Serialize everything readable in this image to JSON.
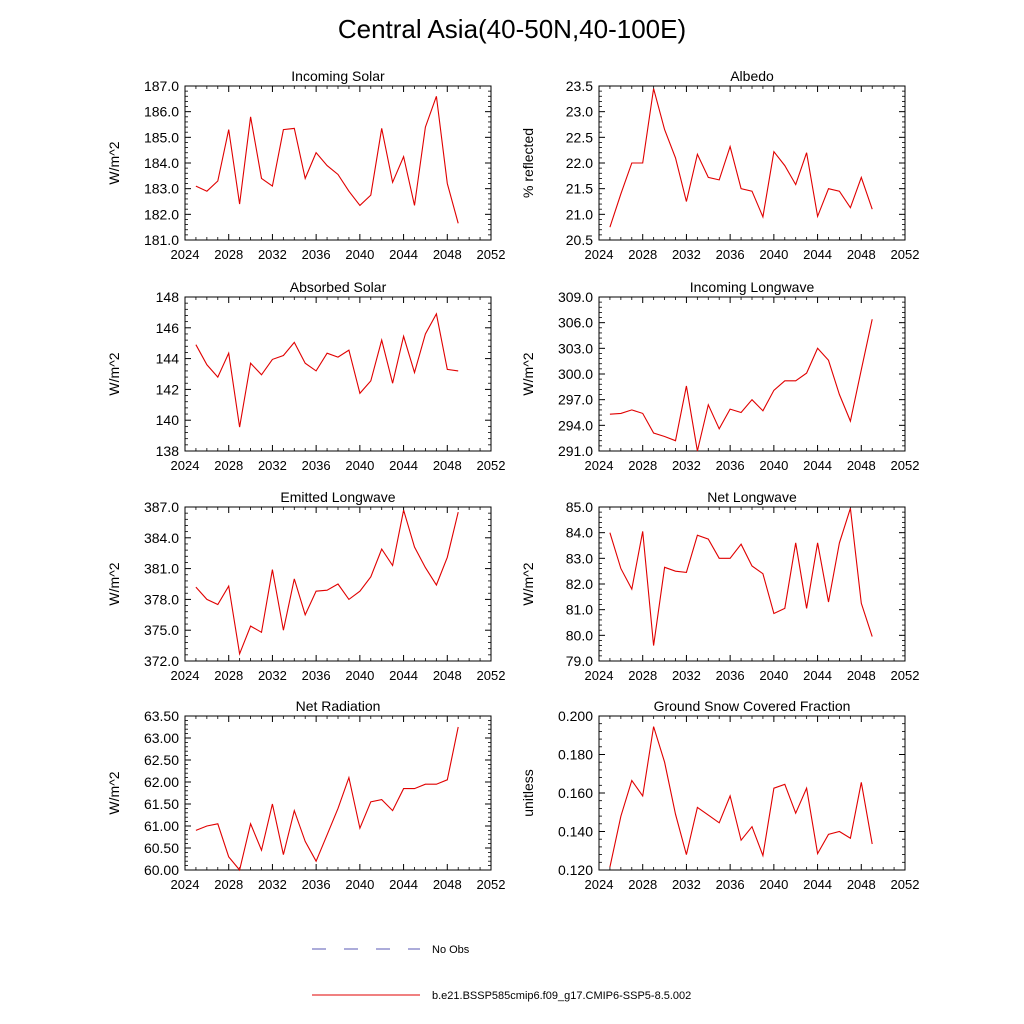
{
  "title": "Central Asia(40-50N,40-100E)",
  "legend": [
    {
      "label": "No Obs",
      "color": "#5a5ab4",
      "dashed": true
    },
    {
      "label": "b.e21.BSSP585cmip6.f09_g17.CMIP6-SSP5-8.5.002",
      "color": "#e00000",
      "dashed": false
    }
  ],
  "chart_data": [
    {
      "type": "line",
      "title": "Incoming Solar",
      "ylabel": "W/m^2",
      "xlim": [
        2024,
        2052
      ],
      "xticks": [
        2024,
        2028,
        2032,
        2036,
        2040,
        2044,
        2048,
        2052
      ],
      "ylim": [
        181.0,
        187.0
      ],
      "yticks": [
        "181.0",
        "182.0",
        "183.0",
        "184.0",
        "185.0",
        "186.0",
        "187.0"
      ],
      "series": [
        {
          "color": "#e00000",
          "x": [
            2025,
            2026,
            2027,
            2028,
            2029,
            2030,
            2031,
            2032,
            2033,
            2034,
            2035,
            2036,
            2037,
            2038,
            2039,
            2040,
            2041,
            2042,
            2043,
            2044,
            2045,
            2046,
            2047,
            2048,
            2049
          ],
          "values": [
            183.1,
            182.9,
            183.3,
            185.3,
            182.4,
            185.8,
            183.4,
            183.1,
            185.3,
            185.35,
            183.4,
            184.4,
            183.9,
            183.55,
            182.9,
            182.35,
            182.75,
            185.35,
            183.25,
            184.25,
            182.35,
            185.4,
            186.6,
            183.2,
            181.65
          ]
        }
      ]
    },
    {
      "type": "line",
      "title": "Albedo",
      "ylabel": "% reflected",
      "xlim": [
        2024,
        2052
      ],
      "xticks": [
        2024,
        2028,
        2032,
        2036,
        2040,
        2044,
        2048,
        2052
      ],
      "ylim": [
        20.5,
        23.5
      ],
      "yticks": [
        "20.5",
        "21.0",
        "21.5",
        "22.0",
        "22.5",
        "23.0",
        "23.5"
      ],
      "series": [
        {
          "color": "#e00000",
          "x": [
            2025,
            2026,
            2027,
            2028,
            2029,
            2030,
            2031,
            2032,
            2033,
            2034,
            2035,
            2036,
            2037,
            2038,
            2039,
            2040,
            2041,
            2042,
            2043,
            2044,
            2045,
            2046,
            2047,
            2048,
            2049
          ],
          "values": [
            20.75,
            21.4,
            22.0,
            22.0,
            23.45,
            22.65,
            22.1,
            21.25,
            22.17,
            21.72,
            21.67,
            22.32,
            21.5,
            21.45,
            20.95,
            22.22,
            21.95,
            21.58,
            22.2,
            20.96,
            21.5,
            21.45,
            21.13,
            21.72,
            21.1
          ]
        }
      ]
    },
    {
      "type": "line",
      "title": "Absorbed Solar",
      "ylabel": "W/m^2",
      "xlim": [
        2024,
        2052
      ],
      "xticks": [
        2024,
        2028,
        2032,
        2036,
        2040,
        2044,
        2048,
        2052
      ],
      "ylim": [
        138,
        148
      ],
      "yticks": [
        "138",
        "140",
        "142",
        "144",
        "146",
        "148"
      ],
      "series": [
        {
          "color": "#e00000",
          "x": [
            2025,
            2026,
            2027,
            2028,
            2029,
            2030,
            2031,
            2032,
            2033,
            2034,
            2035,
            2036,
            2037,
            2038,
            2039,
            2040,
            2041,
            2042,
            2043,
            2044,
            2045,
            2046,
            2047,
            2048,
            2049
          ],
          "values": [
            144.9,
            143.6,
            142.8,
            144.35,
            139.55,
            143.7,
            142.95,
            143.95,
            144.2,
            145.05,
            143.7,
            143.2,
            144.35,
            144.1,
            144.55,
            141.75,
            142.55,
            145.2,
            142.4,
            145.45,
            143.1,
            145.6,
            146.9,
            143.3,
            143.2
          ]
        }
      ]
    },
    {
      "type": "line",
      "title": "Incoming Longwave",
      "ylabel": "W/m^2",
      "xlim": [
        2024,
        2052
      ],
      "xticks": [
        2024,
        2028,
        2032,
        2036,
        2040,
        2044,
        2048,
        2052
      ],
      "ylim": [
        291.0,
        309.0
      ],
      "yticks": [
        "291.0",
        "294.0",
        "297.0",
        "300.0",
        "303.0",
        "306.0",
        "309.0"
      ],
      "series": [
        {
          "color": "#e00000",
          "x": [
            2025,
            2026,
            2027,
            2028,
            2029,
            2030,
            2031,
            2032,
            2033,
            2034,
            2035,
            2036,
            2037,
            2038,
            2039,
            2040,
            2041,
            2042,
            2043,
            2044,
            2045,
            2046,
            2047,
            2048,
            2049
          ],
          "values": [
            295.3,
            295.4,
            295.8,
            295.4,
            293.1,
            292.7,
            292.2,
            298.6,
            291.0,
            296.4,
            293.6,
            295.9,
            295.5,
            297.0,
            295.7,
            298.1,
            299.2,
            299.2,
            300.1,
            303.0,
            301.6,
            297.6,
            294.5,
            300.5,
            306.4
          ]
        }
      ]
    },
    {
      "type": "line",
      "title": "Emitted Longwave",
      "ylabel": "W/m^2",
      "xlim": [
        2024,
        2052
      ],
      "xticks": [
        2024,
        2028,
        2032,
        2036,
        2040,
        2044,
        2048,
        2052
      ],
      "ylim": [
        372.0,
        387.0
      ],
      "yticks": [
        "372.0",
        "375.0",
        "378.0",
        "381.0",
        "384.0",
        "387.0"
      ],
      "series": [
        {
          "color": "#e00000",
          "x": [
            2025,
            2026,
            2027,
            2028,
            2029,
            2030,
            2031,
            2032,
            2033,
            2034,
            2035,
            2036,
            2037,
            2038,
            2039,
            2040,
            2041,
            2042,
            2043,
            2044,
            2045,
            2046,
            2047,
            2048,
            2049
          ],
          "values": [
            379.2,
            378.0,
            377.5,
            379.3,
            372.7,
            375.4,
            374.8,
            380.9,
            375.0,
            380.0,
            376.5,
            378.8,
            378.9,
            379.5,
            378.0,
            378.8,
            380.2,
            382.9,
            381.3,
            386.7,
            383.1,
            381.1,
            379.4,
            382.1,
            386.5
          ]
        }
      ]
    },
    {
      "type": "line",
      "title": "Net Longwave",
      "ylabel": "W/m^2",
      "xlim": [
        2024,
        2052
      ],
      "xticks": [
        2024,
        2028,
        2032,
        2036,
        2040,
        2044,
        2048,
        2052
      ],
      "ylim": [
        79.0,
        85.0
      ],
      "yticks": [
        "79.0",
        "80.0",
        "81.0",
        "82.0",
        "83.0",
        "84.0",
        "85.0"
      ],
      "series": [
        {
          "color": "#e00000",
          "x": [
            2025,
            2026,
            2027,
            2028,
            2029,
            2030,
            2031,
            2032,
            2033,
            2034,
            2035,
            2036,
            2037,
            2038,
            2039,
            2040,
            2041,
            2042,
            2043,
            2044,
            2045,
            2046,
            2047,
            2048,
            2049
          ],
          "values": [
            84.0,
            82.6,
            81.8,
            84.05,
            79.6,
            82.65,
            82.5,
            82.45,
            83.9,
            83.75,
            83.0,
            83.0,
            83.55,
            82.7,
            82.4,
            80.85,
            81.05,
            83.6,
            81.05,
            83.6,
            81.3,
            83.6,
            84.95,
            81.25,
            79.95
          ]
        }
      ]
    },
    {
      "type": "line",
      "title": "Net Radiation",
      "ylabel": "W/m^2",
      "xlim": [
        2024,
        2052
      ],
      "xticks": [
        2024,
        2028,
        2032,
        2036,
        2040,
        2044,
        2048,
        2052
      ],
      "ylim": [
        60.0,
        63.5
      ],
      "yticks": [
        "60.00",
        "60.50",
        "61.00",
        "61.50",
        "62.00",
        "62.50",
        "63.00",
        "63.50"
      ],
      "series": [
        {
          "color": "#e00000",
          "x": [
            2025,
            2026,
            2027,
            2028,
            2029,
            2030,
            2031,
            2032,
            2033,
            2034,
            2035,
            2036,
            2037,
            2038,
            2039,
            2040,
            2041,
            2042,
            2043,
            2044,
            2045,
            2046,
            2047,
            2048,
            2049
          ],
          "values": [
            60.9,
            61.0,
            61.05,
            60.3,
            60.0,
            61.05,
            60.45,
            61.5,
            60.35,
            61.35,
            60.65,
            60.2,
            60.8,
            61.4,
            62.1,
            60.95,
            61.55,
            61.6,
            61.35,
            61.85,
            61.85,
            61.95,
            61.95,
            62.05,
            63.25
          ]
        }
      ]
    },
    {
      "type": "line",
      "title": "Ground Snow Covered Fraction",
      "ylabel": "unitless",
      "xlim": [
        2024,
        2052
      ],
      "xticks": [
        2024,
        2028,
        2032,
        2036,
        2040,
        2044,
        2048,
        2052
      ],
      "ylim": [
        0.12,
        0.2
      ],
      "yticks": [
        "0.120",
        "0.140",
        "0.160",
        "0.180",
        "0.200"
      ],
      "series": [
        {
          "color": "#e00000",
          "x": [
            2025,
            2026,
            2027,
            2028,
            2029,
            2030,
            2031,
            2032,
            2033,
            2034,
            2035,
            2036,
            2037,
            2038,
            2039,
            2040,
            2041,
            2042,
            2043,
            2044,
            2045,
            2046,
            2047,
            2048,
            2049
          ],
          "values": [
            0.1215,
            0.148,
            0.1665,
            0.1585,
            0.1945,
            0.176,
            0.149,
            0.128,
            0.1525,
            0.1485,
            0.1445,
            0.1585,
            0.1355,
            0.1425,
            0.1275,
            0.1625,
            0.1645,
            0.1495,
            0.1625,
            0.1285,
            0.1385,
            0.14,
            0.1365,
            0.1655,
            0.1335
          ]
        }
      ]
    }
  ]
}
